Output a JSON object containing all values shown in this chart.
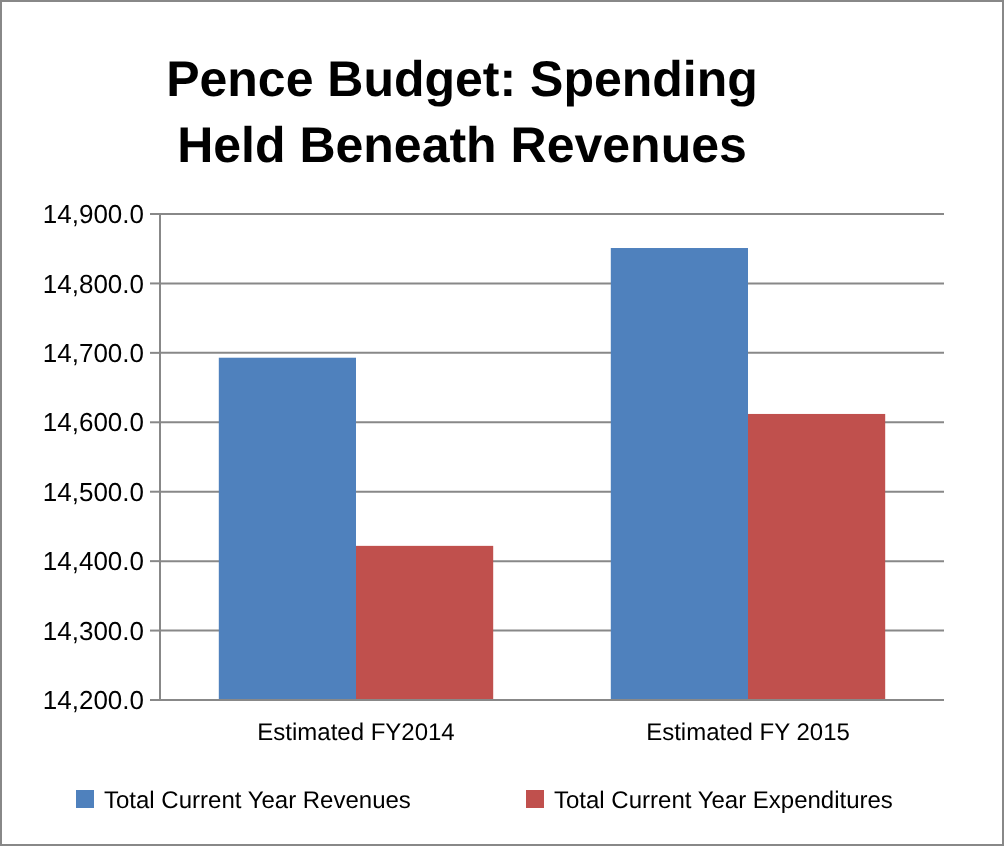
{
  "chart_data": {
    "type": "bar",
    "title": "Pence Budget: Spending Held Beneath Revenues",
    "categories": [
      "Estimated FY2014",
      "Estimated FY 2015"
    ],
    "series": [
      {
        "name": "Total Current Year Revenues",
        "color": "#4f81bd",
        "values": [
          14693,
          14851
        ]
      },
      {
        "name": "Total Current Year Expenditures",
        "color": "#c0504d",
        "values": [
          14422,
          14612
        ]
      }
    ],
    "ylim": [
      14200,
      14900
    ],
    "yticks": [
      {
        "value": 14200,
        "label": "14,200.0"
      },
      {
        "value": 14300,
        "label": "14,300.0"
      },
      {
        "value": 14400,
        "label": "14,400.0"
      },
      {
        "value": 14500,
        "label": "14,500.0"
      },
      {
        "value": 14600,
        "label": "14,600.0"
      },
      {
        "value": 14700,
        "label": "14,700.0"
      },
      {
        "value": 14800,
        "label": "14,800.0"
      },
      {
        "value": 14900,
        "label": "14,900.0"
      }
    ],
    "grid": "y",
    "legend": "bottom"
  }
}
